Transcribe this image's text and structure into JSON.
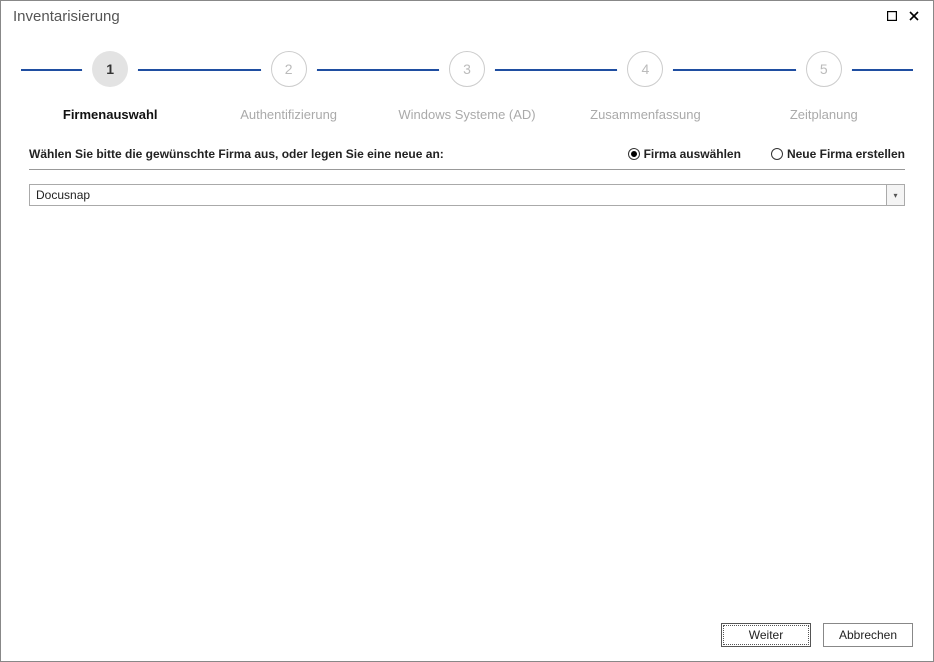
{
  "window": {
    "title": "Inventarisierung"
  },
  "wizard": {
    "active_step": 1,
    "steps": [
      {
        "num": "1",
        "label": "Firmenauswahl"
      },
      {
        "num": "2",
        "label": "Authentifizierung"
      },
      {
        "num": "3",
        "label": "Windows Systeme (AD)"
      },
      {
        "num": "4",
        "label": "Zusammenfassung"
      },
      {
        "num": "5",
        "label": "Zeitplanung"
      }
    ]
  },
  "content": {
    "prompt": "Wählen Sie bitte die gewünschte Firma aus, oder legen Sie eine neue an:",
    "radio_select_label": "Firma auswählen",
    "radio_create_label": "Neue Firma erstellen",
    "radio_selected": "select",
    "dropdown_value": "Docusnap"
  },
  "footer": {
    "next_label": "Weiter",
    "cancel_label": "Abbrechen"
  },
  "colors": {
    "step_line": "#1f4ea1"
  }
}
